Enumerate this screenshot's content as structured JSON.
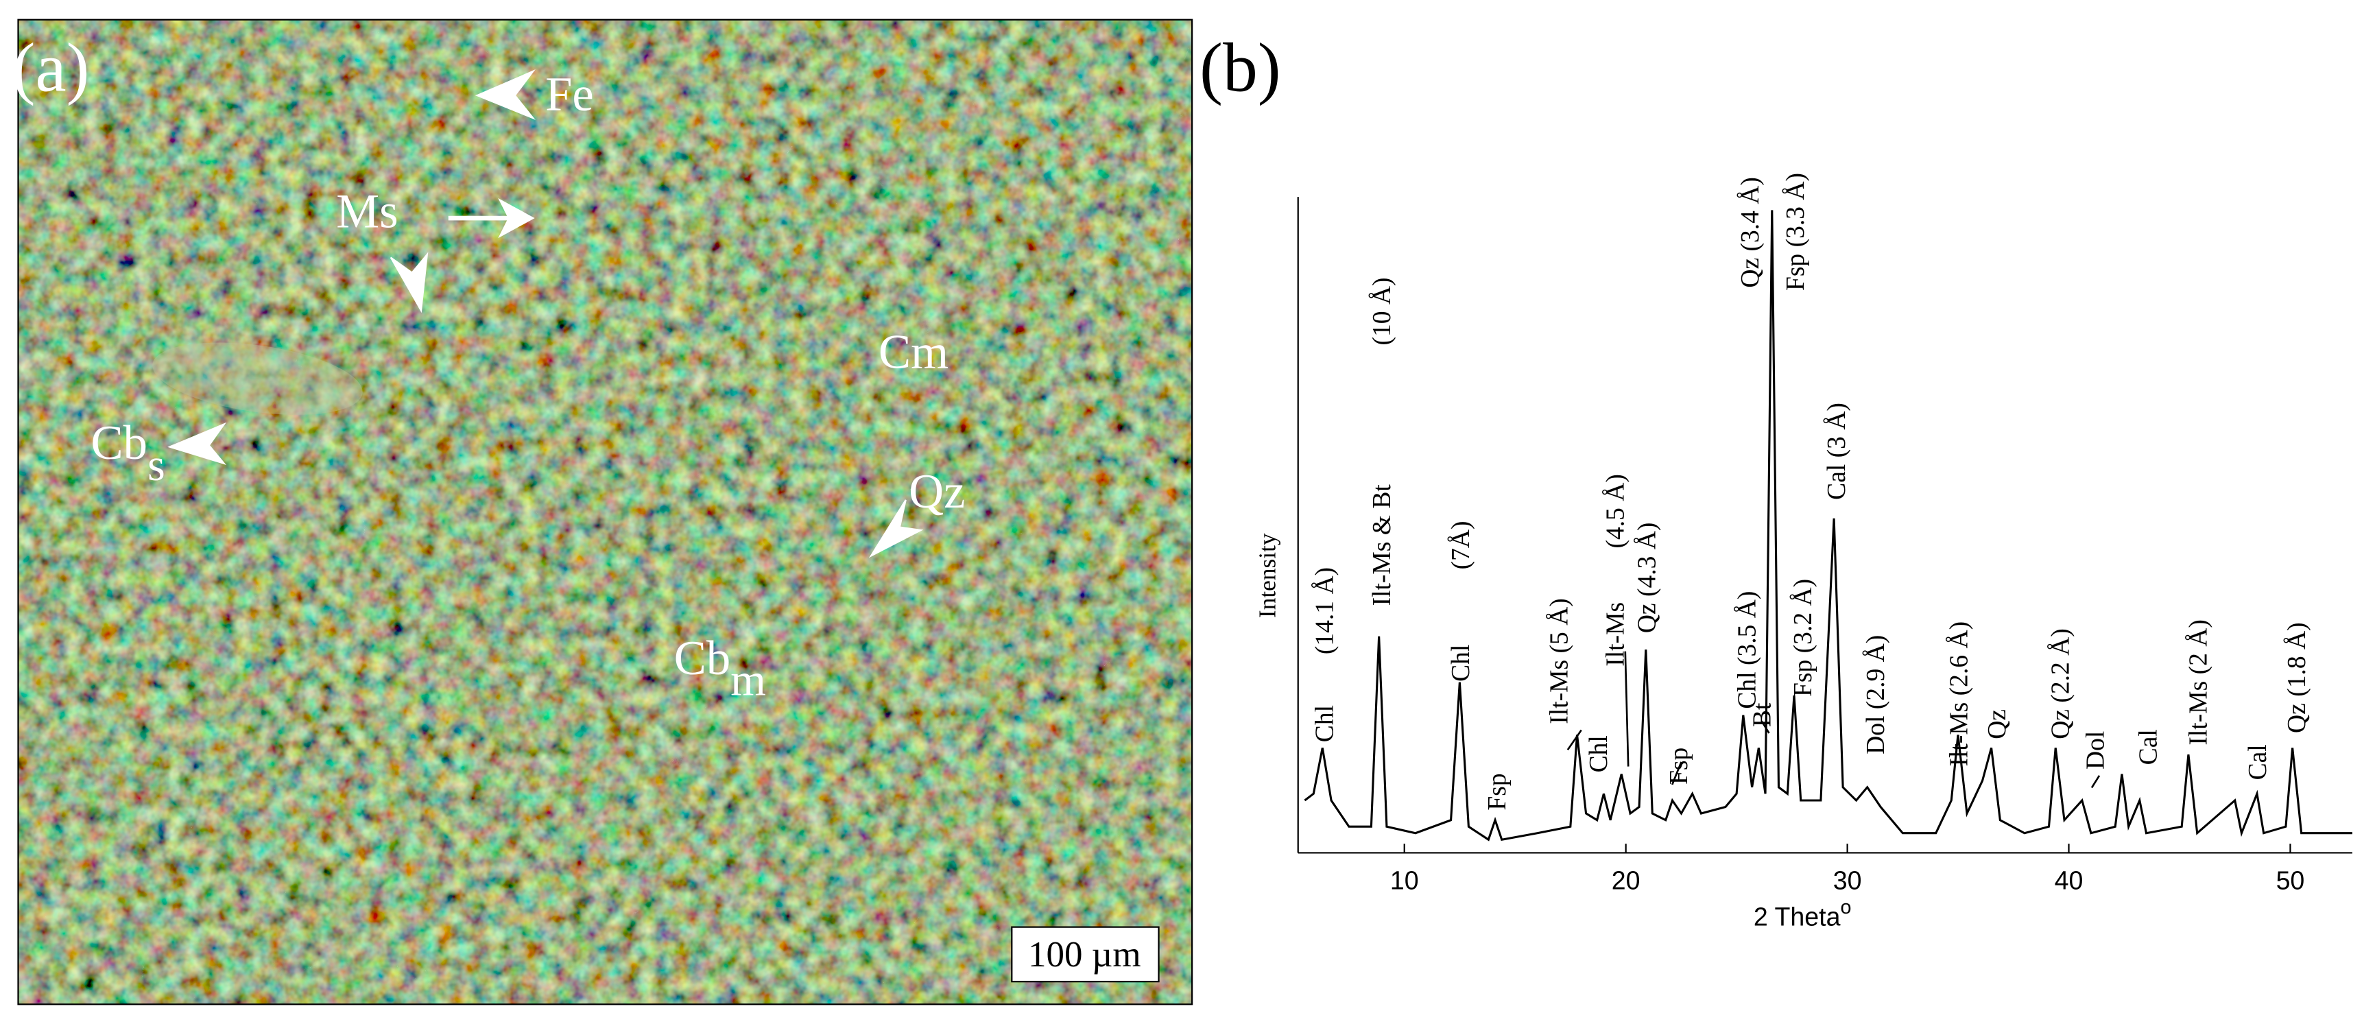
{
  "panel_a": {
    "panel_label": "(a)",
    "mineral_labels": [
      {
        "text": "Fe"
      },
      {
        "text": "Ms"
      },
      {
        "text": "Cm"
      },
      {
        "text": "Cb",
        "sub": "s"
      },
      {
        "text": "Qz"
      },
      {
        "text": "Cb",
        "sub": "m"
      }
    ],
    "scale_bar": "100 µm"
  },
  "chart_data": {
    "type": "line",
    "panel_label": "(b)",
    "y_label": "Intensity",
    "x_label": "2 Theta",
    "x_label_sup": "o",
    "color": "#000000",
    "xlim": [
      5.2,
      52.8
    ],
    "ylim": [
      0,
      100
    ],
    "xticks": [
      10,
      20,
      30,
      40,
      50
    ],
    "x": [
      5.5,
      5.9,
      6.3,
      6.7,
      7.5,
      8.5,
      8.85,
      9.2,
      10.5,
      12.1,
      12.5,
      12.9,
      13.8,
      14.1,
      14.4,
      16,
      17.5,
      17.8,
      18.2,
      18.7,
      19.0,
      19.3,
      19.8,
      20.2,
      20.6,
      20.9,
      21.2,
      21.8,
      22.1,
      22.5,
      23.0,
      23.4,
      24.5,
      25.0,
      25.3,
      25.7,
      26.0,
      26.3,
      26.6,
      26.9,
      27.3,
      27.6,
      27.9,
      28.8,
      29.4,
      29.8,
      30.4,
      30.9,
      31.5,
      32.5,
      34,
      34.7,
      35.0,
      35.4,
      36.1,
      36.5,
      36.9,
      38,
      39.1,
      39.4,
      39.8,
      40.6,
      41,
      42.1,
      42.4,
      42.7,
      43.2,
      43.5,
      45.1,
      45.4,
      45.8,
      47.5,
      47.8,
      48.5,
      48.8,
      49.8,
      50.1,
      50.5,
      52.8
    ],
    "values": [
      8,
      9,
      16,
      8,
      4,
      4,
      33,
      4,
      3,
      5,
      26,
      4,
      2,
      5,
      2,
      3,
      4,
      18,
      6,
      5,
      9,
      5,
      12,
      6,
      7,
      31,
      6,
      5,
      8,
      6,
      9,
      6,
      7,
      9,
      21,
      10,
      16,
      9,
      98,
      10,
      9,
      24,
      8,
      8,
      51,
      10,
      8,
      10,
      7,
      3,
      3,
      8,
      18,
      6,
      11,
      16,
      5,
      3,
      4,
      16,
      5,
      8,
      3,
      4,
      12,
      4,
      8,
      3,
      4,
      15,
      3,
      8,
      3,
      9,
      3,
      4,
      16,
      3,
      3
    ],
    "annotations": [
      "Chl",
      "(14.1 Å)",
      "Ilt-Ms & Bt",
      "(10 Å)",
      "Chl",
      "(7Å)",
      "Fsp",
      "Ilt-Ms (5 Å)",
      "Chl",
      "Ilt-Ms",
      "(4.5 Å)",
      "Qz (4.3 Å)",
      "Fsp",
      "Chl (3.5 Å)",
      "Bt",
      "Qz (3.4 Å)",
      "Fsp (3.3 Å)",
      "Fsp (3.2 Å)",
      "Cal (3 Å)",
      "Dol (2.9 Å)",
      "Ilt-Ms (2.6 Å)",
      "Qz",
      "Qz (2.2 Å)",
      "Dol",
      "Cal",
      "Ilt-Ms (2 Å)",
      "Cal",
      "Qz (1.8 Å)"
    ]
  }
}
